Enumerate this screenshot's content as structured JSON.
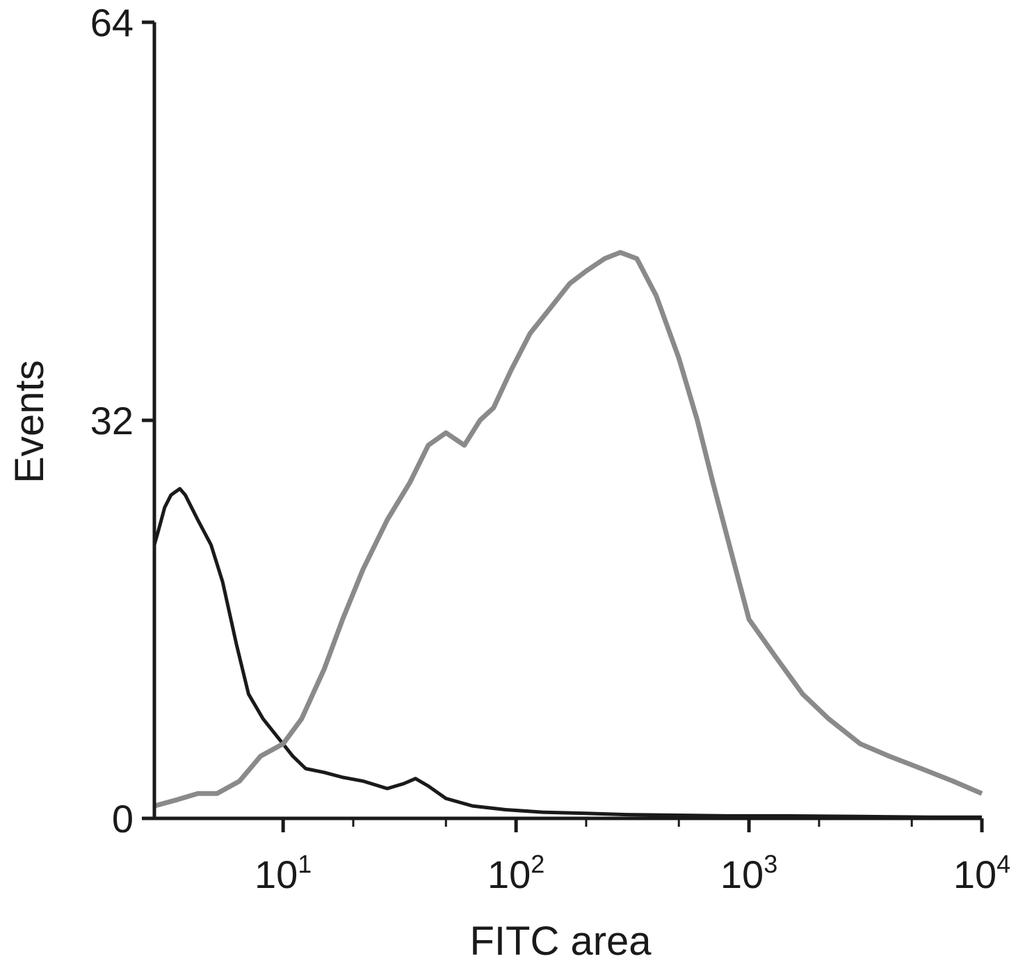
{
  "chart_data": {
    "type": "line",
    "title": "",
    "xlabel": "FITC area",
    "ylabel": "Events",
    "xscale": "log",
    "xlim": [
      2.8,
      10000
    ],
    "ylim": [
      0,
      64
    ],
    "grid": false,
    "legend": "none",
    "x_ticks": [
      {
        "value": 10,
        "base": "10",
        "exp": "1"
      },
      {
        "value": 100,
        "base": "10",
        "exp": "2"
      },
      {
        "value": 1000,
        "base": "10",
        "exp": "3"
      },
      {
        "value": 10000,
        "base": "10",
        "exp": "4"
      }
    ],
    "y_ticks": [
      {
        "value": 0,
        "label": "0"
      },
      {
        "value": 32,
        "label": "32"
      },
      {
        "value": 64,
        "label": "64"
      }
    ],
    "series": [
      {
        "color": "#1a1a1a",
        "x": [
          2.8,
          2.9,
          3.0,
          3.1,
          3.3,
          3.6,
          3.8,
          4.3,
          4.9,
          5.5,
          6.3,
          7.1,
          8.2,
          9.5,
          11,
          12.5,
          15,
          18,
          22,
          28,
          33,
          37,
          42,
          50,
          65,
          90,
          130,
          200,
          300,
          500,
          800,
          1500,
          3000,
          6000,
          10000
        ],
        "y": [
          22,
          23,
          24,
          25,
          26,
          26.5,
          26,
          24,
          22,
          19,
          14,
          10,
          8,
          6.5,
          5,
          4,
          3.7,
          3.3,
          3.0,
          2.4,
          2.8,
          3.2,
          2.6,
          1.6,
          1.0,
          0.7,
          0.5,
          0.4,
          0.3,
          0.25,
          0.2,
          0.2,
          0.15,
          0.1,
          0.1
        ]
      },
      {
        "color": "#8a8a8a",
        "x": [
          2.8,
          3.5,
          4.3,
          5.2,
          6.5,
          8.0,
          10,
          12,
          15,
          18,
          22,
          28,
          35,
          42,
          50,
          60,
          70,
          80,
          95,
          115,
          140,
          170,
          200,
          240,
          280,
          330,
          400,
          500,
          600,
          700,
          850,
          1000,
          1300,
          1700,
          2200,
          3000,
          4000,
          5500,
          7500,
          10000
        ],
        "y": [
          1,
          1.5,
          2,
          2,
          3,
          5,
          6,
          8,
          12,
          16,
          20,
          24,
          27,
          30,
          31,
          30,
          32,
          33,
          36,
          39,
          41,
          43,
          44,
          45,
          45.5,
          45,
          42,
          37,
          32,
          27,
          21,
          16,
          13,
          10,
          8,
          6,
          5,
          4,
          3,
          2
        ]
      }
    ]
  }
}
